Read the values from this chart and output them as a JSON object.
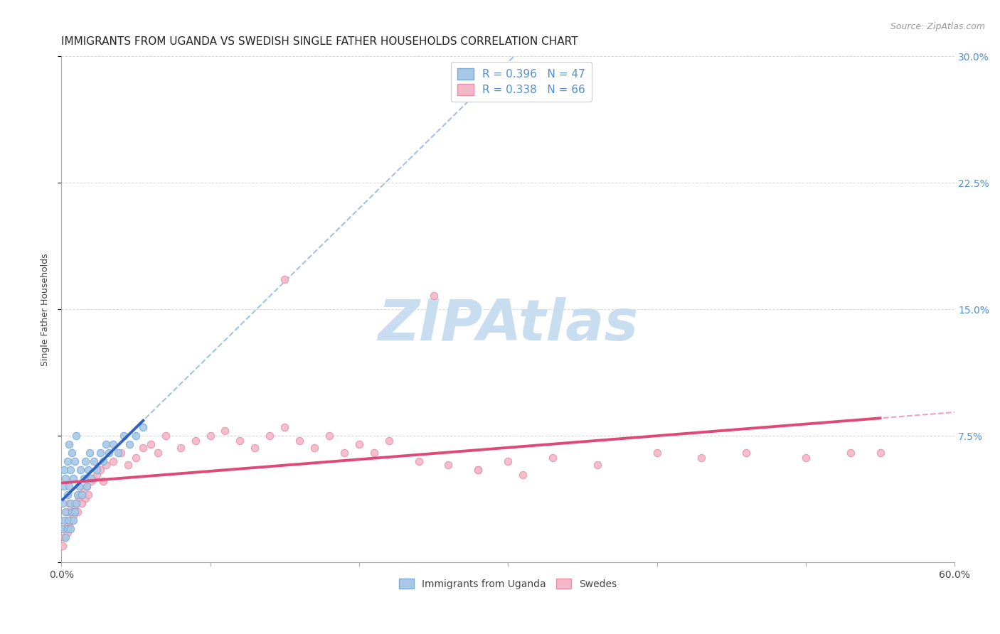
{
  "title": "IMMIGRANTS FROM UGANDA VS SWEDISH SINGLE FATHER HOUSEHOLDS CORRELATION CHART",
  "source": "Source: ZipAtlas.com",
  "ylabel": "Single Father Households",
  "xlim": [
    0.0,
    0.6
  ],
  "ylim": [
    0.0,
    0.3
  ],
  "xticks": [
    0.0,
    0.1,
    0.2,
    0.3,
    0.4,
    0.5,
    0.6
  ],
  "xticklabels": [
    "0.0%",
    "",
    "",
    "",
    "",
    "",
    "60.0%"
  ],
  "yticks": [
    0.0,
    0.075,
    0.15,
    0.225,
    0.3
  ],
  "yticklabels": [
    "",
    "7.5%",
    "15.0%",
    "22.5%",
    "30.0%"
  ],
  "legend_r1": "R = 0.396",
  "legend_n1": "N = 47",
  "legend_r2": "R = 0.338",
  "legend_n2": "N = 66",
  "color_blue_fill": "#a8c8e8",
  "color_blue_edge": "#7aadd4",
  "color_pink_fill": "#f4b8c8",
  "color_pink_edge": "#e890a8",
  "color_blue_line": "#3060c0",
  "color_pink_line": "#e04878",
  "color_blue_dashed": "#90b8e0",
  "color_pink_dashed": "#f090b0",
  "color_right_axis": "#5090d0",
  "watermark_text": "ZIPAtlas",
  "watermark_color": "#c8ddf0",
  "background_color": "#ffffff",
  "grid_color": "#cccccc",
  "title_color": "#222222",
  "source_color": "#999999",
  "uganda_x": [
    0.001,
    0.001,
    0.002,
    0.002,
    0.002,
    0.003,
    0.003,
    0.003,
    0.004,
    0.004,
    0.004,
    0.005,
    0.005,
    0.005,
    0.006,
    0.006,
    0.006,
    0.007,
    0.007,
    0.008,
    0.008,
    0.009,
    0.009,
    0.01,
    0.01,
    0.011,
    0.012,
    0.013,
    0.014,
    0.015,
    0.016,
    0.017,
    0.018,
    0.019,
    0.02,
    0.022,
    0.024,
    0.026,
    0.028,
    0.03,
    0.032,
    0.035,
    0.038,
    0.042,
    0.046,
    0.05,
    0.055
  ],
  "uganda_y": [
    0.02,
    0.035,
    0.025,
    0.045,
    0.055,
    0.015,
    0.03,
    0.05,
    0.02,
    0.04,
    0.06,
    0.025,
    0.045,
    0.07,
    0.02,
    0.035,
    0.055,
    0.03,
    0.065,
    0.025,
    0.05,
    0.03,
    0.06,
    0.035,
    0.075,
    0.04,
    0.045,
    0.055,
    0.04,
    0.05,
    0.06,
    0.045,
    0.055,
    0.065,
    0.05,
    0.06,
    0.055,
    0.065,
    0.06,
    0.07,
    0.065,
    0.07,
    0.065,
    0.075,
    0.07,
    0.075,
    0.08
  ],
  "swedes_x": [
    0.001,
    0.002,
    0.003,
    0.003,
    0.004,
    0.004,
    0.005,
    0.005,
    0.006,
    0.007,
    0.008,
    0.009,
    0.01,
    0.011,
    0.012,
    0.013,
    0.014,
    0.015,
    0.016,
    0.017,
    0.018,
    0.02,
    0.022,
    0.024,
    0.026,
    0.028,
    0.03,
    0.035,
    0.04,
    0.045,
    0.05,
    0.055,
    0.06,
    0.065,
    0.07,
    0.08,
    0.09,
    0.1,
    0.11,
    0.12,
    0.13,
    0.14,
    0.15,
    0.16,
    0.17,
    0.18,
    0.19,
    0.2,
    0.21,
    0.22,
    0.24,
    0.26,
    0.28,
    0.3,
    0.33,
    0.36,
    0.4,
    0.43,
    0.46,
    0.5,
    0.53,
    0.55,
    0.25,
    0.15,
    0.28,
    0.31
  ],
  "swedes_y": [
    0.01,
    0.015,
    0.02,
    0.025,
    0.018,
    0.03,
    0.022,
    0.035,
    0.025,
    0.03,
    0.028,
    0.032,
    0.035,
    0.03,
    0.038,
    0.04,
    0.035,
    0.042,
    0.038,
    0.045,
    0.04,
    0.048,
    0.05,
    0.052,
    0.055,
    0.048,
    0.058,
    0.06,
    0.065,
    0.058,
    0.062,
    0.068,
    0.07,
    0.065,
    0.075,
    0.068,
    0.072,
    0.075,
    0.078,
    0.072,
    0.068,
    0.075,
    0.08,
    0.072,
    0.068,
    0.075,
    0.065,
    0.07,
    0.065,
    0.072,
    0.06,
    0.058,
    0.055,
    0.06,
    0.062,
    0.058,
    0.065,
    0.062,
    0.065,
    0.062,
    0.065,
    0.065,
    0.158,
    0.168,
    0.055,
    0.052
  ],
  "title_fontsize": 11,
  "axis_label_fontsize": 9,
  "tick_fontsize": 10,
  "legend_fontsize": 11,
  "source_fontsize": 9
}
